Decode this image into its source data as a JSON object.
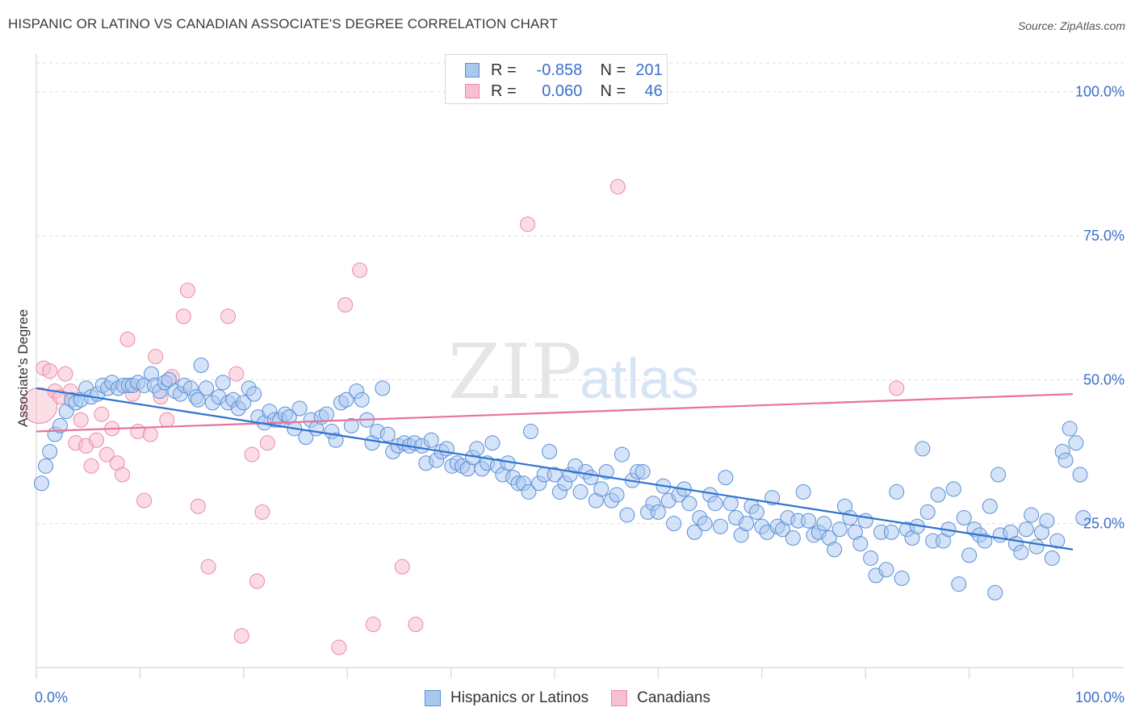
{
  "header": {
    "title": "HISPANIC OR LATINO VS CANADIAN ASSOCIATE'S DEGREE CORRELATION CHART",
    "source": "Source: ZipAtlas.com"
  },
  "watermark": {
    "zip": "ZIP",
    "atlas": "atlas"
  },
  "legend_top": [
    {
      "r_label": "R =",
      "r_value": "-0.858",
      "n_label": "N =",
      "n_value": "201"
    },
    {
      "r_label": "R =",
      "r_value": "0.060",
      "n_label": "N =",
      "n_value": "46"
    }
  ],
  "legend_bottom": {
    "hispanic": "Hispanics or Latinos",
    "canadian": "Canadians"
  },
  "colors": {
    "blue_fill": "#a9c8f0",
    "blue_stroke": "#5b8fd6",
    "blue_line": "#2e72d2",
    "pink_fill": "#f7bfd0",
    "pink_stroke": "#e98aa8",
    "pink_line": "#e8729a",
    "axis_text": "#3b6fcc",
    "grid": "#dedede"
  },
  "chart_data": {
    "type": "scatter",
    "title": "HISPANIC OR LATINO VS CANADIAN ASSOCIATE'S DEGREE CORRELATION CHART",
    "xlabel": "",
    "ylabel": "Associate's Degree",
    "xlim": [
      0,
      100
    ],
    "ylim": [
      0,
      105
    ],
    "x_tick_labels": [
      "0.0%",
      "100.0%"
    ],
    "y_ticks": [
      25,
      50,
      75,
      100
    ],
    "y_tick_labels": [
      "25.0%",
      "50.0%",
      "75.0%",
      "100.0%"
    ],
    "grid": true,
    "legend_position": "top-center",
    "series": [
      {
        "name": "Hispanics or Latinos",
        "color": "#a9c8f0",
        "r": -0.858,
        "n": 201,
        "trend": {
          "x": [
            0,
            100
          ],
          "y": [
            48.5,
            20.5
          ]
        },
        "points": [
          [
            0.5,
            32
          ],
          [
            0.9,
            35
          ],
          [
            1.3,
            37.5
          ],
          [
            1.8,
            40.5
          ],
          [
            2.3,
            42
          ],
          [
            2.9,
            44.5
          ],
          [
            3.4,
            46.5
          ],
          [
            3.8,
            46
          ],
          [
            4.3,
            46.5
          ],
          [
            4.8,
            48.5
          ],
          [
            5.3,
            47
          ],
          [
            5.9,
            47.5
          ],
          [
            6.4,
            49
          ],
          [
            6.9,
            48.5
          ],
          [
            7.3,
            49.5
          ],
          [
            7.9,
            48.5
          ],
          [
            8.4,
            49
          ],
          [
            8.9,
            49
          ],
          [
            9.3,
            49
          ],
          [
            9.8,
            49.5
          ],
          [
            10.4,
            49
          ],
          [
            11.1,
            51
          ],
          [
            11.4,
            49
          ],
          [
            11.9,
            48
          ],
          [
            12.4,
            49.5
          ],
          [
            12.8,
            50
          ],
          [
            13.4,
            48
          ],
          [
            13.9,
            47.5
          ],
          [
            14.3,
            49
          ],
          [
            14.9,
            48.5
          ],
          [
            15.4,
            47
          ],
          [
            15.6,
            46.5
          ],
          [
            15.9,
            52.5
          ],
          [
            16.4,
            48.5
          ],
          [
            17,
            46
          ],
          [
            17.6,
            47
          ],
          [
            18,
            49.5
          ],
          [
            18.5,
            46
          ],
          [
            19,
            46.5
          ],
          [
            19.5,
            45
          ],
          [
            20,
            46
          ],
          [
            20.5,
            48.5
          ],
          [
            21,
            47.5
          ],
          [
            21.4,
            43.5
          ],
          [
            22,
            42.5
          ],
          [
            22.5,
            44.5
          ],
          [
            23,
            43
          ],
          [
            23.5,
            43
          ],
          [
            24,
            44
          ],
          [
            24.4,
            43.5
          ],
          [
            24.9,
            41.5
          ],
          [
            25.4,
            45
          ],
          [
            26,
            40
          ],
          [
            26.5,
            43
          ],
          [
            27,
            41.5
          ],
          [
            27.5,
            43.5
          ],
          [
            28,
            44
          ],
          [
            28.5,
            41
          ],
          [
            28.9,
            39.5
          ],
          [
            29.4,
            46
          ],
          [
            29.9,
            46.5
          ],
          [
            30.4,
            42
          ],
          [
            30.9,
            48
          ],
          [
            31.4,
            46.5
          ],
          [
            31.9,
            43
          ],
          [
            32.4,
            39
          ],
          [
            32.9,
            41
          ],
          [
            33.4,
            48.5
          ],
          [
            33.9,
            40.5
          ],
          [
            34.4,
            37.5
          ],
          [
            34.9,
            38.5
          ],
          [
            35.5,
            39
          ],
          [
            36,
            38.5
          ],
          [
            36.5,
            39
          ],
          [
            37.2,
            38.5
          ],
          [
            37.6,
            35.5
          ],
          [
            38.1,
            39.5
          ],
          [
            38.6,
            36
          ],
          [
            39.1,
            37.5
          ],
          [
            39.6,
            38
          ],
          [
            40.1,
            35
          ],
          [
            40.6,
            35.5
          ],
          [
            41.1,
            35
          ],
          [
            41.6,
            34.5
          ],
          [
            42.1,
            36.5
          ],
          [
            42.5,
            38
          ],
          [
            43,
            34.5
          ],
          [
            43.5,
            35.5
          ],
          [
            44,
            39
          ],
          [
            44.5,
            35
          ],
          [
            45,
            33.5
          ],
          [
            45.5,
            35.5
          ],
          [
            46,
            33
          ],
          [
            46.5,
            32
          ],
          [
            47,
            32
          ],
          [
            47.5,
            30.5
          ],
          [
            47.7,
            41
          ],
          [
            48.5,
            32
          ],
          [
            49,
            33.5
          ],
          [
            49.5,
            37.5
          ],
          [
            50,
            33.5
          ],
          [
            50.5,
            30.5
          ],
          [
            51,
            32
          ],
          [
            51.5,
            33.5
          ],
          [
            52,
            35
          ],
          [
            52.5,
            30.5
          ],
          [
            53,
            34
          ],
          [
            53.5,
            33
          ],
          [
            54,
            29
          ],
          [
            54.5,
            31
          ],
          [
            55,
            34
          ],
          [
            55.5,
            29
          ],
          [
            56,
            30
          ],
          [
            56.5,
            37
          ],
          [
            57,
            26.5
          ],
          [
            57.5,
            32.5
          ],
          [
            58,
            34
          ],
          [
            58.5,
            34
          ],
          [
            59,
            27
          ],
          [
            59.5,
            28.5
          ],
          [
            60,
            27
          ],
          [
            60.5,
            31.5
          ],
          [
            61,
            29
          ],
          [
            61.5,
            25
          ],
          [
            62,
            30
          ],
          [
            62.5,
            31
          ],
          [
            63,
            28.5
          ],
          [
            63.5,
            23.5
          ],
          [
            64,
            26
          ],
          [
            64.5,
            25
          ],
          [
            65,
            30
          ],
          [
            65.5,
            28.5
          ],
          [
            66,
            24.5
          ],
          [
            66.5,
            33
          ],
          [
            67,
            28.5
          ],
          [
            67.5,
            26
          ],
          [
            68,
            23
          ],
          [
            68.5,
            25
          ],
          [
            69,
            28
          ],
          [
            69.5,
            27
          ],
          [
            70,
            24.5
          ],
          [
            70.5,
            23.5
          ],
          [
            71,
            29.5
          ],
          [
            71.5,
            24.5
          ],
          [
            72,
            24
          ],
          [
            72.5,
            26
          ],
          [
            73,
            22.5
          ],
          [
            73.5,
            25.5
          ],
          [
            74,
            30.5
          ],
          [
            74.5,
            25.5
          ],
          [
            75,
            23
          ],
          [
            75.5,
            23.5
          ],
          [
            76,
            25
          ],
          [
            76.5,
            22.5
          ],
          [
            77,
            20.5
          ],
          [
            77.5,
            24
          ],
          [
            78,
            28
          ],
          [
            78.5,
            26
          ],
          [
            79,
            23.5
          ],
          [
            79.5,
            21.5
          ],
          [
            80,
            25.5
          ],
          [
            80.5,
            19
          ],
          [
            81,
            16
          ],
          [
            81.5,
            23.5
          ],
          [
            82,
            17
          ],
          [
            82.5,
            23.5
          ],
          [
            83,
            30.5
          ],
          [
            83.5,
            15.5
          ],
          [
            84,
            24
          ],
          [
            84.5,
            22.5
          ],
          [
            85,
            24.5
          ],
          [
            85.5,
            38
          ],
          [
            86,
            27
          ],
          [
            86.5,
            22
          ],
          [
            87,
            30
          ],
          [
            87.5,
            22
          ],
          [
            88,
            24
          ],
          [
            88.5,
            31
          ],
          [
            89,
            14.5
          ],
          [
            89.5,
            26
          ],
          [
            90,
            19.5
          ],
          [
            90.5,
            24
          ],
          [
            91,
            23
          ],
          [
            91.5,
            22
          ],
          [
            92,
            28
          ],
          [
            92.5,
            13
          ],
          [
            92.8,
            33.5
          ],
          [
            93,
            23
          ],
          [
            94,
            23.5
          ],
          [
            94.5,
            21.5
          ],
          [
            95,
            20
          ],
          [
            95.5,
            24
          ],
          [
            96,
            26.5
          ],
          [
            96.5,
            21
          ],
          [
            97,
            23.5
          ],
          [
            97.5,
            25.5
          ],
          [
            98,
            19
          ],
          [
            98.5,
            22
          ],
          [
            99,
            37.5
          ],
          [
            99.3,
            36
          ],
          [
            99.7,
            41.5
          ],
          [
            100.3,
            39
          ],
          [
            100.7,
            33.5
          ],
          [
            101,
            26
          ]
        ]
      },
      {
        "name": "Canadians",
        "color": "#f7bfd0",
        "r": 0.06,
        "n": 46,
        "trend": {
          "x": [
            0,
            100
          ],
          "y": [
            41,
            47.5
          ]
        },
        "points": [
          [
            0.3,
            45.5
          ],
          [
            0.7,
            52
          ],
          [
            1.3,
            51.5
          ],
          [
            1.8,
            48
          ],
          [
            2.3,
            47
          ],
          [
            2.8,
            51
          ],
          [
            3.3,
            48
          ],
          [
            3.8,
            39
          ],
          [
            4.3,
            43
          ],
          [
            4.8,
            38.5
          ],
          [
            5.3,
            35
          ],
          [
            5.8,
            39.5
          ],
          [
            6.3,
            44
          ],
          [
            6.8,
            37
          ],
          [
            7.3,
            41.5
          ],
          [
            7.8,
            35.5
          ],
          [
            8.3,
            33.5
          ],
          [
            8.8,
            57
          ],
          [
            9.3,
            47.5
          ],
          [
            9.8,
            41
          ],
          [
            10.4,
            29
          ],
          [
            11,
            40.5
          ],
          [
            11.5,
            54
          ],
          [
            12,
            47
          ],
          [
            12.6,
            43
          ],
          [
            13.1,
            50.5
          ],
          [
            14.2,
            61
          ],
          [
            14.6,
            65.5
          ],
          [
            15.6,
            28
          ],
          [
            16.6,
            17.5
          ],
          [
            18.5,
            61
          ],
          [
            19.3,
            51
          ],
          [
            19.8,
            5.5
          ],
          [
            20.8,
            37
          ],
          [
            21.3,
            15
          ],
          [
            21.8,
            27
          ],
          [
            22.3,
            39
          ],
          [
            29.2,
            3.5
          ],
          [
            29.8,
            63
          ],
          [
            31.2,
            69
          ],
          [
            32.5,
            7.5
          ],
          [
            35.3,
            17.5
          ],
          [
            36.6,
            7.5
          ],
          [
            47.4,
            77
          ],
          [
            56.1,
            83.5
          ],
          [
            83,
            48.5
          ]
        ]
      }
    ]
  }
}
